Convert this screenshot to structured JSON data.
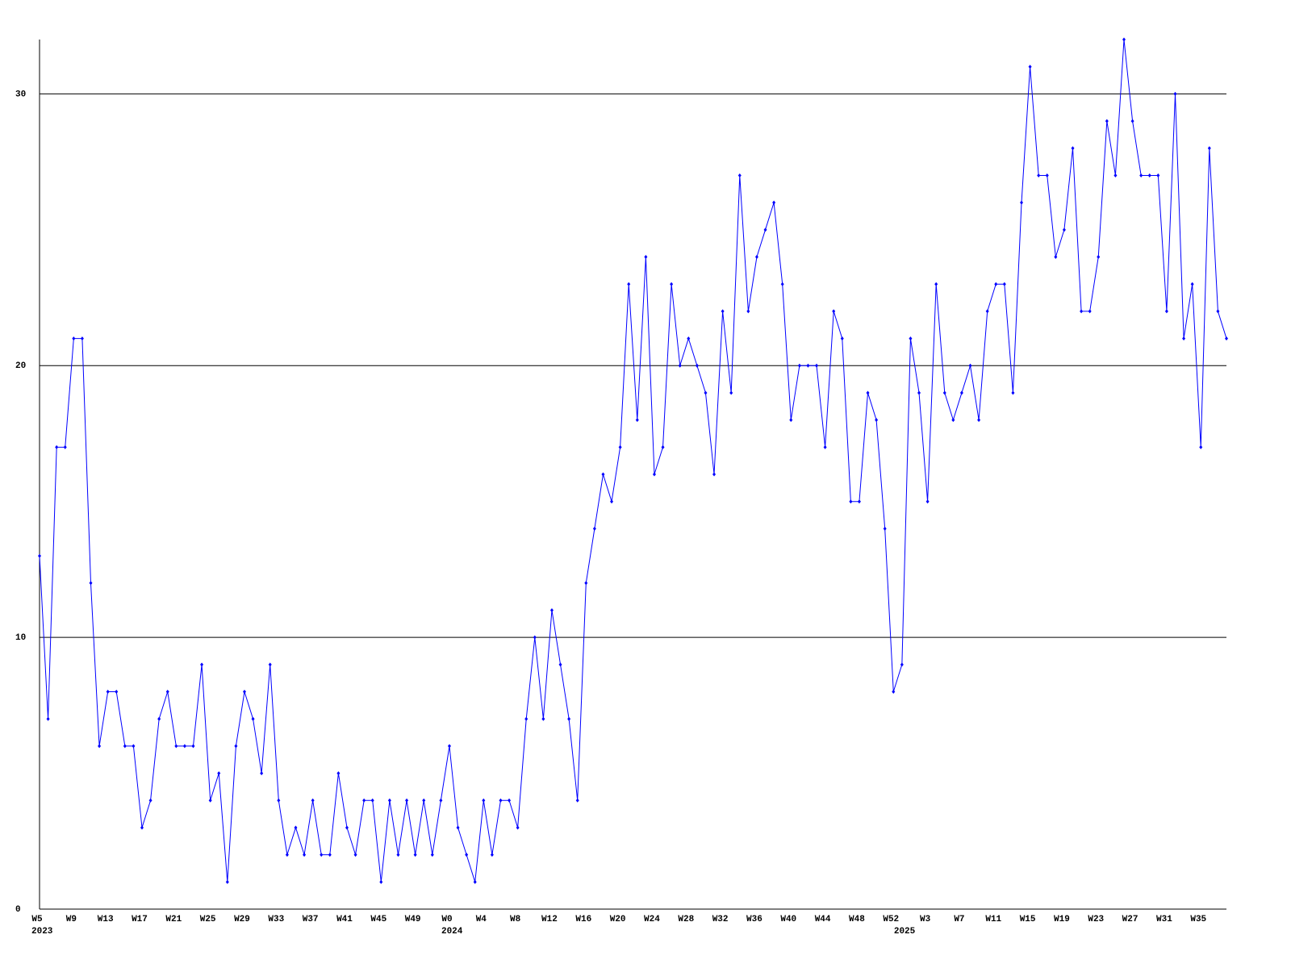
{
  "chart_data": {
    "type": "line",
    "categories": [
      "W5",
      null,
      null,
      null,
      "W9",
      null,
      null,
      null,
      "W13",
      null,
      null,
      null,
      "W17",
      null,
      null,
      null,
      "W21",
      null,
      null,
      null,
      "W25",
      null,
      null,
      null,
      "W29",
      null,
      null,
      null,
      "W33",
      null,
      null,
      null,
      "W37",
      null,
      null,
      null,
      "W41",
      null,
      null,
      null,
      "W45",
      null,
      null,
      null,
      "W49",
      null,
      null,
      null,
      "W0",
      null,
      null,
      null,
      "W4",
      null,
      null,
      null,
      "W8",
      null,
      null,
      null,
      "W12",
      null,
      null,
      null,
      "W16",
      null,
      null,
      null,
      "W20",
      null,
      null,
      null,
      "W24",
      null,
      null,
      null,
      "W28",
      null,
      null,
      null,
      "W32",
      null,
      null,
      null,
      "W36",
      null,
      null,
      null,
      "W40",
      null,
      null,
      null,
      "W44",
      null,
      null,
      null,
      "W48",
      null,
      null,
      null,
      "W52",
      null,
      null,
      null,
      "W3",
      null,
      null,
      null,
      "W7",
      null,
      null,
      null,
      "W11",
      null,
      null,
      null,
      "W15",
      null,
      null,
      null,
      "W19",
      null,
      null,
      null,
      "W23",
      null,
      null,
      null,
      "W27",
      null,
      null,
      null,
      "W31",
      null,
      null,
      null,
      "W35",
      null,
      null,
      null
    ],
    "year_labels": [
      "2023",
      null,
      null,
      null,
      null,
      null,
      null,
      null,
      null,
      null,
      null,
      null,
      null,
      null,
      null,
      null,
      null,
      null,
      null,
      null,
      null,
      null,
      null,
      null,
      null,
      null,
      null,
      null,
      null,
      null,
      null,
      null,
      null,
      null,
      null,
      null,
      null,
      null,
      null,
      null,
      null,
      null,
      null,
      null,
      null,
      null,
      null,
      null,
      "2024",
      null,
      null,
      null,
      null,
      null,
      null,
      null,
      null,
      null,
      null,
      null,
      null,
      null,
      null,
      null,
      null,
      null,
      null,
      null,
      null,
      null,
      null,
      null,
      null,
      null,
      null,
      null,
      null,
      null,
      null,
      null,
      null,
      null,
      null,
      null,
      null,
      null,
      null,
      null,
      null,
      null,
      null,
      null,
      null,
      null,
      null,
      null,
      null,
      null,
      null,
      null,
      null,
      "2025",
      null,
      null,
      null,
      null,
      null,
      null,
      null,
      null,
      null,
      null,
      null,
      null,
      null,
      null,
      null,
      null,
      null,
      null,
      null,
      null,
      null,
      null,
      null,
      null,
      null,
      null,
      null,
      null,
      null,
      null,
      null,
      null,
      null,
      null,
      null,
      null,
      null,
      null
    ],
    "series": [
      {
        "color": "#0000ff",
        "values": [
          13,
          7,
          17,
          17,
          21,
          21,
          12,
          6,
          8,
          8,
          6,
          6,
          3,
          4,
          7,
          8,
          6,
          6,
          6,
          9,
          4,
          5,
          1,
          6,
          8,
          7,
          5,
          9,
          4,
          2,
          3,
          2,
          4,
          2,
          2,
          5,
          3,
          2,
          4,
          4,
          1,
          4,
          2,
          4,
          2,
          4,
          2,
          4,
          6,
          3,
          2,
          1,
          4,
          2,
          4,
          4,
          3,
          7,
          10,
          7,
          11,
          9,
          7,
          4,
          12,
          14,
          16,
          15,
          17,
          23,
          18,
          24,
          16,
          17,
          23,
          20,
          21,
          20,
          19,
          16,
          22,
          19,
          27,
          22,
          24,
          25,
          26,
          23,
          18,
          20,
          20,
          20,
          17,
          22,
          21,
          15,
          15,
          19,
          18,
          14,
          8,
          9,
          21,
          19,
          15,
          23,
          19,
          18,
          19,
          20,
          18,
          22,
          23,
          23,
          19,
          26,
          31,
          27,
          27,
          24,
          25,
          28,
          22,
          22,
          24,
          29,
          27,
          32,
          29,
          27,
          27,
          27,
          22,
          30,
          21,
          23,
          17,
          28,
          22,
          21
        ]
      }
    ],
    "ylim": [
      0,
      32
    ],
    "yticks": [
      0,
      10,
      20,
      30
    ],
    "grid": true
  }
}
